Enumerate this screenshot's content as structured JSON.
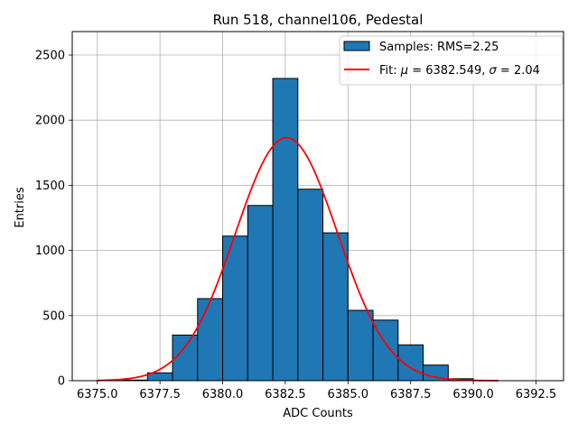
{
  "chart_data": {
    "type": "bar",
    "title": "Run 518, channel106, Pedestal",
    "xlabel": "ADC Counts",
    "ylabel": "Entries",
    "xlim": [
      6374.0,
      6393.6
    ],
    "ylim": [
      0,
      2680
    ],
    "xticks": [
      6375.0,
      6377.5,
      6380.0,
      6382.5,
      6385.0,
      6387.5,
      6390.0,
      6392.5
    ],
    "xtick_labels": [
      "6375.0",
      "6377.5",
      "6380.0",
      "6382.5",
      "6385.0",
      "6387.5",
      "6390.0",
      "6392.5"
    ],
    "yticks": [
      0,
      500,
      1000,
      1500,
      2000,
      2500
    ],
    "ytick_labels": [
      "0",
      "500",
      "1000",
      "1500",
      "2000",
      "2500"
    ],
    "grid": true,
    "legend_position": "top-right",
    "bins": [
      {
        "x0": 6375.0,
        "x1": 6376.0,
        "value": 2
      },
      {
        "x0": 6376.0,
        "x1": 6377.0,
        "value": 5
      },
      {
        "x0": 6377.0,
        "x1": 6378.0,
        "value": 60
      },
      {
        "x0": 6378.0,
        "x1": 6379.0,
        "value": 350
      },
      {
        "x0": 6379.0,
        "x1": 6380.0,
        "value": 630
      },
      {
        "x0": 6380.0,
        "x1": 6381.0,
        "value": 1110
      },
      {
        "x0": 6381.0,
        "x1": 6382.0,
        "value": 1345
      },
      {
        "x0": 6382.0,
        "x1": 6383.0,
        "value": 2320
      },
      {
        "x0": 6383.0,
        "x1": 6384.0,
        "value": 1470
      },
      {
        "x0": 6384.0,
        "x1": 6385.0,
        "value": 1135
      },
      {
        "x0": 6385.0,
        "x1": 6386.0,
        "value": 540
      },
      {
        "x0": 6386.0,
        "x1": 6387.0,
        "value": 465
      },
      {
        "x0": 6387.0,
        "x1": 6388.0,
        "value": 275
      },
      {
        "x0": 6388.0,
        "x1": 6389.0,
        "value": 120
      },
      {
        "x0": 6389.0,
        "x1": 6390.0,
        "value": 15
      },
      {
        "x0": 6390.0,
        "x1": 6391.0,
        "value": 0
      }
    ],
    "fit": {
      "mu": 6382.549,
      "sigma": 2.04,
      "amplitude": 1865,
      "x_range": [
        6375.0,
        6391.0
      ]
    },
    "series": [
      {
        "name": "Samples: RMS=2.25",
        "kind": "histogram",
        "color": "#1f77b4",
        "edgecolor": "#000000"
      },
      {
        "name_prefix": "Fit: ",
        "mu_value": "6382.549",
        "sigma_value": "2.04",
        "kind": "line",
        "color": "#ff0000"
      }
    ]
  }
}
